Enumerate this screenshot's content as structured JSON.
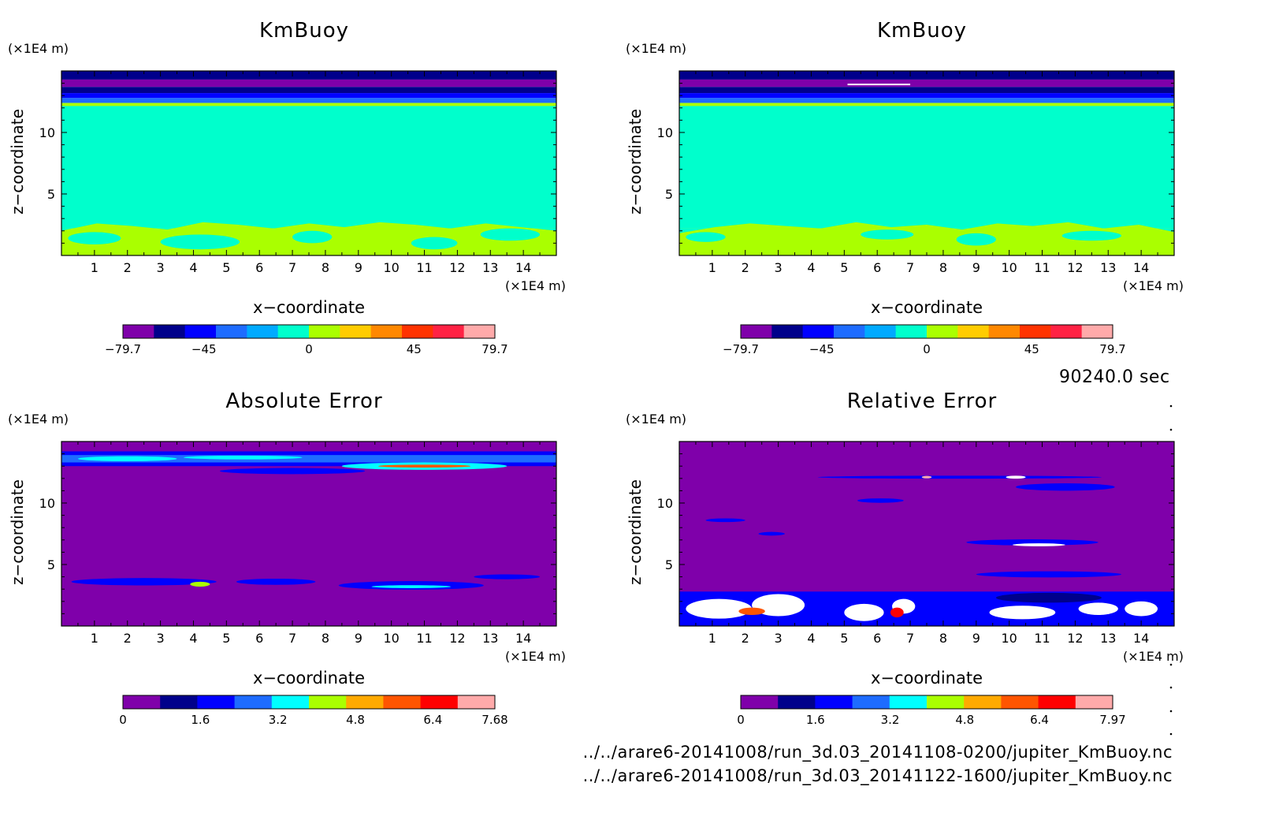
{
  "time_label": "90240.0 sec",
  "files": [
    "../../arare6-20141008/run_3d.03_20141108-0200/jupiter_KmBuoy.nc",
    "../../arare6-20141008/run_3d.03_20141122-1600/jupiter_KmBuoy.nc"
  ],
  "chart_data": [
    {
      "type": "heatmap",
      "title": "KmBuoy",
      "xlabel": "x−coordinate",
      "ylabel": "z−coordinate",
      "x_unit": "(×1E4 m)",
      "y_unit": "(×1E4 m)",
      "xlim": [
        0,
        15
      ],
      "ylim": [
        0,
        15
      ],
      "x_ticks": [
        1,
        2,
        3,
        4,
        5,
        6,
        7,
        8,
        9,
        10,
        11,
        12,
        13,
        14
      ],
      "y_ticks": [
        5,
        10
      ],
      "colorbar": {
        "min": -79.7,
        "max": 79.7,
        "tick_values": [
          -79.7,
          -45,
          0,
          45,
          79.7
        ],
        "tick_labels": [
          "−79.7",
          "−45",
          "0",
          "45",
          "79.7"
        ],
        "colors": [
          "#7f00aa",
          "#00008b",
          "#0000ff",
          "#1e6cff",
          "#00aaff",
          "#00ffcc",
          "#aaff00",
          "#ffcc00",
          "#ff8800",
          "#ff3300",
          "#ff2244",
          "#ffaaaa"
        ]
      },
      "field": {
        "bands": [
          {
            "z0": 14.3,
            "z1": 15.0,
            "color": "#00008b"
          },
          {
            "z0": 13.7,
            "z1": 14.3,
            "color": "#7f00aa"
          },
          {
            "z0": 13.2,
            "z1": 13.7,
            "color": "#00008b"
          },
          {
            "z0": 12.8,
            "z1": 13.2,
            "color": "#0000ff"
          },
          {
            "z0": 12.4,
            "z1": 12.8,
            "color": "#1e6cff"
          },
          {
            "z0": 12.15,
            "z1": 12.4,
            "color": "#aaff00"
          },
          {
            "z0": 2.2,
            "z1": 12.15,
            "color": "#00ffcc"
          },
          {
            "z0": 0.0,
            "z1": 2.2,
            "color": "#aaff00"
          }
        ],
        "low_layer_top": [
          2.0,
          2.6,
          2.4,
          2.1,
          2.7,
          2.5,
          2.2,
          2.6,
          2.3,
          2.7,
          2.5,
          2.2,
          2.6,
          2.3,
          2.0
        ],
        "blobs": [
          {
            "x": 1.0,
            "z": 1.4,
            "rx": 0.8,
            "rz": 0.5,
            "color": "#00ffcc"
          },
          {
            "x": 4.2,
            "z": 1.1,
            "rx": 1.2,
            "rz": 0.6,
            "color": "#00ffcc"
          },
          {
            "x": 7.6,
            "z": 1.5,
            "rx": 0.6,
            "rz": 0.5,
            "color": "#00ffcc"
          },
          {
            "x": 11.3,
            "z": 1.0,
            "rx": 0.7,
            "rz": 0.5,
            "color": "#00ffcc"
          },
          {
            "x": 13.6,
            "z": 1.7,
            "rx": 0.9,
            "rz": 0.5,
            "color": "#00ffcc"
          }
        ]
      }
    },
    {
      "type": "heatmap",
      "title": "KmBuoy",
      "xlabel": "x−coordinate",
      "ylabel": "z−coordinate",
      "x_unit": "(×1E4 m)",
      "y_unit": "(×1E4 m)",
      "xlim": [
        0,
        15
      ],
      "ylim": [
        0,
        15
      ],
      "x_ticks": [
        1,
        2,
        3,
        4,
        5,
        6,
        7,
        8,
        9,
        10,
        11,
        12,
        13,
        14
      ],
      "y_ticks": [
        5,
        10
      ],
      "colorbar": {
        "min": -79.7,
        "max": 79.7,
        "tick_values": [
          -79.7,
          -45,
          0,
          45,
          79.7
        ],
        "tick_labels": [
          "−79.7",
          "−45",
          "0",
          "45",
          "79.7"
        ],
        "colors": [
          "#7f00aa",
          "#00008b",
          "#0000ff",
          "#1e6cff",
          "#00aaff",
          "#00ffcc",
          "#aaff00",
          "#ffcc00",
          "#ff8800",
          "#ff3300",
          "#ff2244",
          "#ffaaaa"
        ]
      },
      "field": {
        "bands": [
          {
            "z0": 14.3,
            "z1": 15.0,
            "color": "#00008b"
          },
          {
            "z0": 13.7,
            "z1": 14.3,
            "color": "#7f00aa"
          },
          {
            "z0": 13.2,
            "z1": 13.7,
            "color": "#00008b"
          },
          {
            "z0": 12.8,
            "z1": 13.2,
            "color": "#0000ff"
          },
          {
            "z0": 12.4,
            "z1": 12.8,
            "color": "#1e6cff"
          },
          {
            "z0": 12.15,
            "z1": 12.4,
            "color": "#aaff00"
          },
          {
            "z0": 2.2,
            "z1": 12.15,
            "color": "#00ffcc"
          },
          {
            "z0": 0.0,
            "z1": 2.2,
            "color": "#aaff00"
          }
        ],
        "low_layer_top": [
          1.8,
          2.3,
          2.6,
          2.4,
          2.2,
          2.7,
          2.3,
          2.5,
          2.1,
          2.6,
          2.4,
          2.7,
          2.2,
          2.5,
          1.9
        ],
        "blobs": [
          {
            "x": 0.8,
            "z": 1.5,
            "rx": 0.6,
            "rz": 0.4,
            "color": "#00ffcc"
          },
          {
            "x": 6.3,
            "z": 1.7,
            "rx": 0.8,
            "rz": 0.4,
            "color": "#00ffcc"
          },
          {
            "x": 9.0,
            "z": 1.3,
            "rx": 0.6,
            "rz": 0.5,
            "color": "#00ffcc"
          },
          {
            "x": 12.5,
            "z": 1.6,
            "rx": 0.9,
            "rz": 0.4,
            "color": "#00ffcc"
          }
        ],
        "contour_line": {
          "x0": 5.1,
          "x1": 7.0,
          "z": 13.9,
          "color": "#ffffff"
        }
      }
    },
    {
      "type": "heatmap",
      "title": "Absolute Error",
      "xlabel": "x−coordinate",
      "ylabel": "z−coordinate",
      "x_unit": "(×1E4 m)",
      "y_unit": "(×1E4 m)",
      "xlim": [
        0,
        15
      ],
      "ylim": [
        0,
        15
      ],
      "x_ticks": [
        1,
        2,
        3,
        4,
        5,
        6,
        7,
        8,
        9,
        10,
        11,
        12,
        13,
        14
      ],
      "y_ticks": [
        5,
        10
      ],
      "colorbar": {
        "min": 0,
        "max": 7.68,
        "tick_values": [
          0,
          1.6,
          3.2,
          4.8,
          6.4,
          7.68
        ],
        "tick_labels": [
          "0",
          "1.6",
          "3.2",
          "4.8",
          "6.4",
          "7.68"
        ],
        "colors": [
          "#7f00aa",
          "#00008b",
          "#0000ff",
          "#1e6cff",
          "#00ffff",
          "#aaff00",
          "#ffaa00",
          "#ff5500",
          "#ff0000",
          "#ffaaaa"
        ]
      },
      "field": {
        "bands": [
          {
            "z0": 0.0,
            "z1": 15.0,
            "color": "#7f00aa"
          },
          {
            "z0": 13.0,
            "z1": 14.2,
            "color": "#0000ff"
          },
          {
            "z0": 13.3,
            "z1": 13.9,
            "color": "#1e6cff"
          }
        ],
        "blobs": [
          {
            "x": 2.0,
            "z": 13.6,
            "rx": 1.5,
            "rz": 0.2,
            "color": "#00ffff"
          },
          {
            "x": 5.5,
            "z": 13.7,
            "rx": 1.8,
            "rz": 0.15,
            "color": "#00ffff"
          },
          {
            "x": 11.0,
            "z": 13.0,
            "rx": 2.5,
            "rz": 0.3,
            "color": "#00ffff"
          },
          {
            "x": 11.0,
            "z": 13.0,
            "rx": 1.4,
            "rz": 0.12,
            "color": "#ff5500"
          },
          {
            "x": 7.0,
            "z": 12.6,
            "rx": 2.2,
            "rz": 0.25,
            "color": "#0000ff"
          },
          {
            "x": 2.5,
            "z": 3.6,
            "rx": 2.2,
            "rz": 0.3,
            "color": "#0000ff"
          },
          {
            "x": 4.2,
            "z": 3.4,
            "rx": 0.3,
            "rz": 0.2,
            "color": "#aaff00"
          },
          {
            "x": 6.5,
            "z": 3.6,
            "rx": 1.2,
            "rz": 0.25,
            "color": "#0000ff"
          },
          {
            "x": 10.6,
            "z": 3.3,
            "rx": 2.2,
            "rz": 0.35,
            "color": "#0000ff"
          },
          {
            "x": 10.6,
            "z": 3.2,
            "rx": 1.2,
            "rz": 0.12,
            "color": "#00ffff"
          },
          {
            "x": 13.5,
            "z": 4.0,
            "rx": 1.0,
            "rz": 0.2,
            "color": "#0000ff"
          }
        ]
      }
    },
    {
      "type": "heatmap",
      "title": "Relative Error",
      "xlabel": "x−coordinate",
      "ylabel": "z−coordinate",
      "x_unit": "(×1E4 m)",
      "y_unit": "(×1E4 m)",
      "xlim": [
        0,
        15
      ],
      "ylim": [
        0,
        15
      ],
      "x_ticks": [
        1,
        2,
        3,
        4,
        5,
        6,
        7,
        8,
        9,
        10,
        11,
        12,
        13,
        14
      ],
      "y_ticks": [
        5,
        10
      ],
      "colorbar": {
        "min": 0,
        "max": 7.97,
        "tick_values": [
          0,
          1.6,
          3.2,
          4.8,
          6.4,
          7.97
        ],
        "tick_labels": [
          "0",
          "1.6",
          "3.2",
          "4.8",
          "6.4",
          "7.97"
        ],
        "colors": [
          "#7f00aa",
          "#00008b",
          "#0000ff",
          "#1e6cff",
          "#00ffff",
          "#aaff00",
          "#ffaa00",
          "#ff5500",
          "#ff0000",
          "#ffaaaa"
        ]
      },
      "field": {
        "bands": [
          {
            "z0": 0.0,
            "z1": 15.0,
            "color": "#7f00aa"
          },
          {
            "z0": 0.0,
            "z1": 2.8,
            "color": "#0000ff"
          }
        ],
        "blobs": [
          {
            "x": 8.5,
            "z": 12.1,
            "rx": 4.3,
            "rz": 0.12,
            "color": "#0000ff"
          },
          {
            "x": 7.5,
            "z": 12.1,
            "rx": 0.15,
            "rz": 0.1,
            "color": "#ffaaaa"
          },
          {
            "x": 10.2,
            "z": 12.1,
            "rx": 0.3,
            "rz": 0.12,
            "color": "#ffffff"
          },
          {
            "x": 11.7,
            "z": 11.3,
            "rx": 1.5,
            "rz": 0.3,
            "color": "#0000ff"
          },
          {
            "x": 6.1,
            "z": 10.2,
            "rx": 0.7,
            "rz": 0.18,
            "color": "#0000ff"
          },
          {
            "x": 1.4,
            "z": 8.6,
            "rx": 0.6,
            "rz": 0.15,
            "color": "#0000ff"
          },
          {
            "x": 2.8,
            "z": 7.5,
            "rx": 0.4,
            "rz": 0.15,
            "color": "#0000ff"
          },
          {
            "x": 10.7,
            "z": 6.8,
            "rx": 2.0,
            "rz": 0.25,
            "color": "#0000ff"
          },
          {
            "x": 10.9,
            "z": 6.6,
            "rx": 0.8,
            "rz": 0.12,
            "color": "#ffffff"
          },
          {
            "x": 11.2,
            "z": 4.2,
            "rx": 2.2,
            "rz": 0.25,
            "color": "#0000ff"
          },
          {
            "x": 1.2,
            "z": 1.4,
            "rx": 1.0,
            "rz": 0.8,
            "color": "#ffffff"
          },
          {
            "x": 3.0,
            "z": 1.7,
            "rx": 0.8,
            "rz": 0.9,
            "color": "#ffffff"
          },
          {
            "x": 2.2,
            "z": 1.2,
            "rx": 0.4,
            "rz": 0.3,
            "color": "#ff5500"
          },
          {
            "x": 5.6,
            "z": 1.1,
            "rx": 0.6,
            "rz": 0.7,
            "color": "#ffffff"
          },
          {
            "x": 6.8,
            "z": 1.6,
            "rx": 0.35,
            "rz": 0.6,
            "color": "#ffffff"
          },
          {
            "x": 6.6,
            "z": 1.1,
            "rx": 0.2,
            "rz": 0.4,
            "color": "#ff0000"
          },
          {
            "x": 10.4,
            "z": 1.1,
            "rx": 1.0,
            "rz": 0.55,
            "color": "#ffffff"
          },
          {
            "x": 12.7,
            "z": 1.4,
            "rx": 0.6,
            "rz": 0.5,
            "color": "#ffffff"
          },
          {
            "x": 14.0,
            "z": 1.4,
            "rx": 0.5,
            "rz": 0.6,
            "color": "#ffffff"
          },
          {
            "x": 11.2,
            "z": 2.3,
            "rx": 1.6,
            "rz": 0.4,
            "color": "#00008b"
          }
        ]
      }
    }
  ]
}
